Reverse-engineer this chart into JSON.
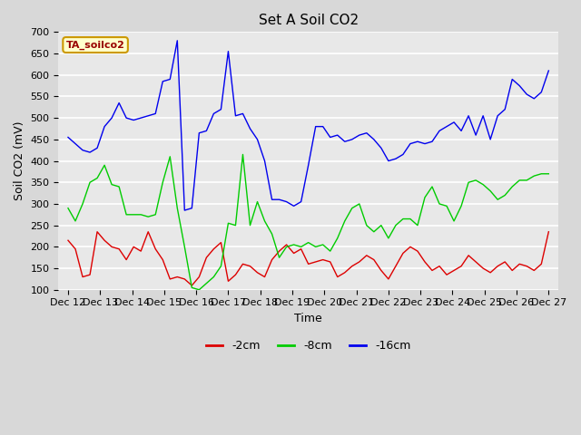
{
  "title": "Set A Soil CO2",
  "ylabel": "Soil CO2 (mV)",
  "xlabel": "Time",
  "legend_label": "TA_soilco2",
  "ylim": [
    100,
    700
  ],
  "yticks": [
    100,
    150,
    200,
    250,
    300,
    350,
    400,
    450,
    500,
    550,
    600,
    650,
    700
  ],
  "x_labels": [
    "Dec 12",
    "Dec 13",
    "Dec 14",
    "Dec 15",
    "Dec 16",
    "Dec 17",
    "Dec 18",
    "Dec 19",
    "Dec 20",
    "Dec 21",
    "Dec 22",
    "Dec 23",
    "Dec 24",
    "Dec 25",
    "Dec 26",
    "Dec 27"
  ],
  "series": {
    "red": {
      "label": "-2cm",
      "color": "#dd0000",
      "values": [
        215,
        195,
        130,
        135,
        235,
        215,
        200,
        195,
        170,
        200,
        190,
        235,
        195,
        170,
        125,
        130,
        125,
        110,
        130,
        175,
        195,
        210,
        120,
        135,
        160,
        155,
        140,
        130,
        170,
        190,
        205,
        185,
        195,
        160,
        165,
        170,
        165,
        130,
        140,
        155,
        165,
        180,
        170,
        145,
        125,
        155,
        185,
        200,
        190,
        165,
        145,
        155,
        135,
        145,
        155,
        180,
        165,
        150,
        140,
        155,
        165,
        145,
        160,
        155,
        145,
        160,
        235
      ]
    },
    "green": {
      "label": "-8cm",
      "color": "#00cc00",
      "values": [
        290,
        260,
        300,
        350,
        360,
        390,
        345,
        340,
        275,
        275,
        275,
        270,
        275,
        350,
        410,
        290,
        200,
        105,
        100,
        115,
        130,
        155,
        255,
        250,
        415,
        250,
        305,
        260,
        230,
        175,
        200,
        205,
        200,
        210,
        200,
        205,
        190,
        220,
        260,
        290,
        300,
        250,
        235,
        250,
        220,
        250,
        265,
        265,
        250,
        315,
        340,
        300,
        295,
        260,
        295,
        350,
        355,
        345,
        330,
        310,
        320,
        340,
        355,
        355,
        365,
        370,
        370
      ]
    },
    "blue": {
      "label": "-16cm",
      "color": "#0000ee",
      "values": [
        455,
        440,
        425,
        420,
        430,
        480,
        500,
        535,
        500,
        495,
        500,
        505,
        510,
        585,
        590,
        680,
        285,
        290,
        465,
        470,
        510,
        520,
        655,
        505,
        510,
        475,
        450,
        400,
        310,
        310,
        305,
        295,
        305,
        390,
        480,
        480,
        455,
        460,
        445,
        450,
        460,
        465,
        450,
        430,
        400,
        405,
        415,
        440,
        445,
        440,
        445,
        470,
        480,
        490,
        470,
        505,
        460,
        505,
        450,
        505,
        520,
        590,
        575,
        555,
        545,
        560,
        610
      ]
    }
  },
  "fig_bg": "#d8d8d8",
  "plot_bg": "#e8e8e8",
  "legend_bg": "#ffffff",
  "grid_color": "#ffffff",
  "title_fontsize": 11,
  "axis_fontsize": 9,
  "tick_fontsize": 8
}
